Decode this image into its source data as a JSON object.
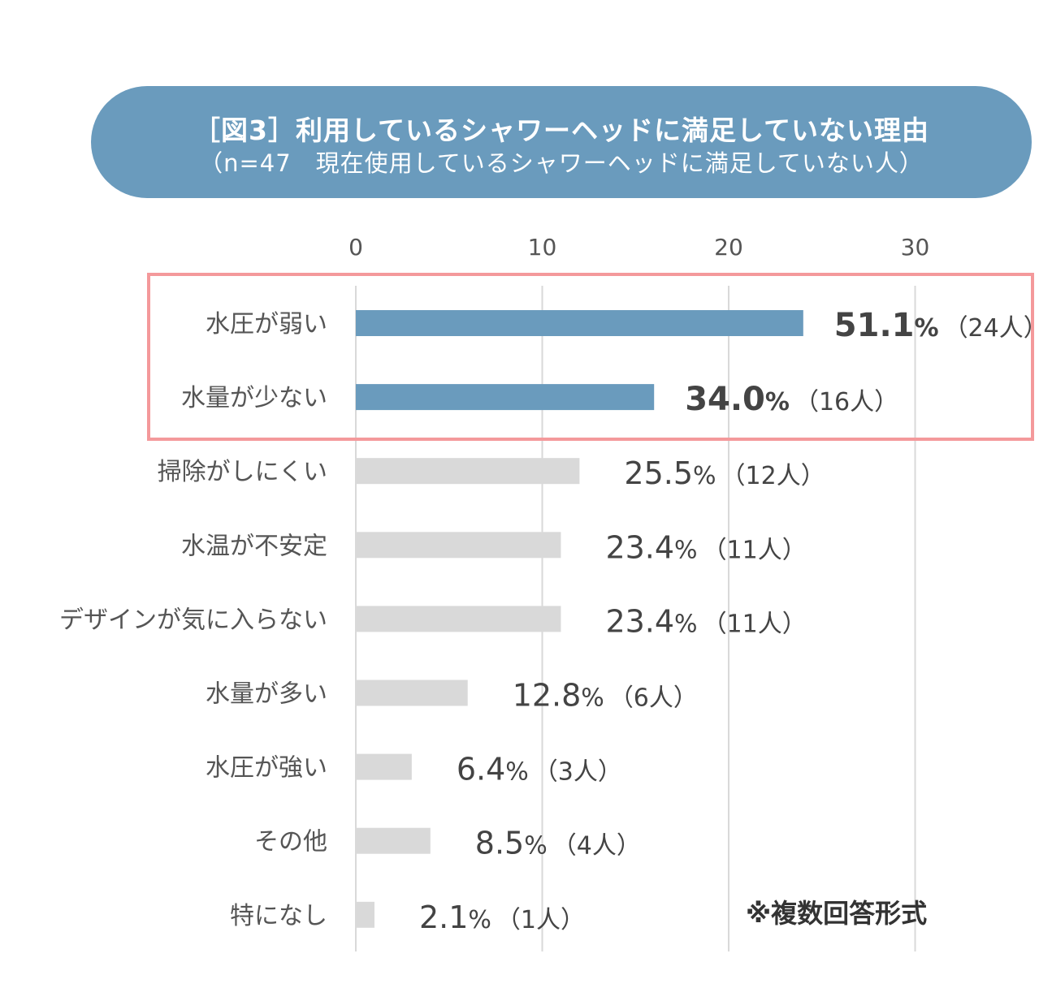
{
  "title": {
    "main": "［図3］利用しているシャワーヘッドに満足していない理由",
    "sub": "（n=47　現在使用しているシャワーヘッドに満足していない人）"
  },
  "note": "※複数回答形式",
  "colors": {
    "highlight": "#6a9bbd",
    "normal": "#d9d9d9",
    "box": "#f4999b",
    "grid": "#d9d9d9"
  },
  "chart_data": {
    "type": "bar",
    "orientation": "horizontal",
    "xlim": [
      0,
      35
    ],
    "ticks": [
      0,
      10,
      20,
      30
    ],
    "grid": true,
    "categories": [
      "水圧が弱い",
      "水量が少ない",
      "掃除がしにくい",
      "水温が不安定",
      "デザインが気に入らない",
      "水量が多い",
      "水圧が強い",
      "その他",
      "特になし"
    ],
    "values": [
      24,
      16,
      12,
      11,
      11,
      6,
      3,
      4,
      1
    ],
    "percents": [
      "51.1",
      "34.0",
      "25.5",
      "23.4",
      "23.4",
      "12.8",
      "6.4",
      "8.5",
      "2.1"
    ],
    "percent_sign": "%",
    "count_labels": [
      "（24人）",
      "（16人）",
      "（12人）",
      "（11人）",
      "（11人）",
      "（6人）",
      "（3人）",
      "（4人）",
      "（1人）"
    ],
    "highlighted": [
      true,
      true,
      false,
      false,
      false,
      false,
      false,
      false,
      false
    ]
  }
}
